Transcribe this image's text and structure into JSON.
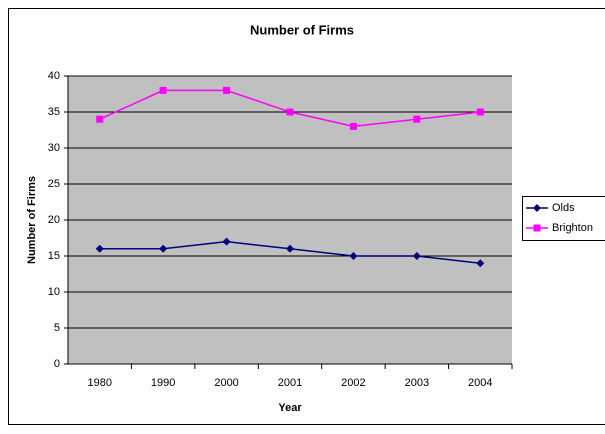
{
  "chart_data": {
    "type": "line",
    "title": "Number of Firms",
    "x_label": "Year",
    "y_label": "Number of Firms",
    "categories": [
      "1980",
      "1990",
      "2000",
      "2001",
      "2002",
      "2003",
      "2004"
    ],
    "series": [
      {
        "name": "Olds",
        "color": "#000080",
        "marker": "diamond",
        "values": [
          16,
          16,
          17,
          16,
          15,
          15,
          14
        ]
      },
      {
        "name": "Brighton",
        "color": "#ff00ff",
        "marker": "square",
        "values": [
          34,
          38,
          38,
          35,
          33,
          34,
          35
        ]
      }
    ],
    "ylim": [
      0,
      40
    ],
    "yticks": [
      0,
      5,
      10,
      15,
      20,
      25,
      30,
      35,
      40
    ],
    "grid": true,
    "legend": "right"
  }
}
